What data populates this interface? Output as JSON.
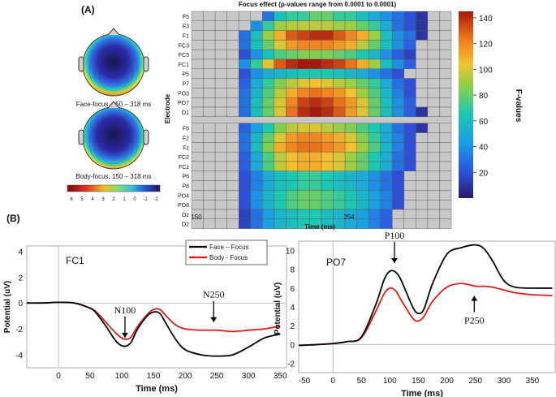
{
  "panel_labels": {
    "a": "(A)",
    "b": "(B)"
  },
  "chart_data": [
    {
      "type": "heatmap",
      "title": "Focus effect (p-values range from 0.0001 to 0.0001)",
      "xlabel": "Time (ms)",
      "ylabel": "Electrode",
      "x_ticks": [
        "150",
        "254"
      ],
      "rows_top": [
        "F5",
        "F3",
        "F1",
        "FC3",
        "FC5",
        "FC1",
        "P5",
        "P7",
        "PO3",
        "PO7",
        "O1"
      ],
      "rows_bottom": [
        "F6",
        "F2",
        "Fz",
        "FC2",
        "FCz",
        "P6",
        "P8",
        "PO4",
        "PO8",
        "Oz",
        "O2"
      ],
      "n_columns": 22,
      "values_top": [
        [
          0,
          0,
          0,
          0,
          0,
          0,
          30,
          60,
          70,
          70,
          80,
          80,
          70,
          70,
          60,
          50,
          40,
          30,
          20,
          10,
          0,
          0
        ],
        [
          0,
          0,
          0,
          0,
          0,
          40,
          70,
          90,
          95,
          95,
          95,
          95,
          90,
          90,
          80,
          70,
          50,
          30,
          20,
          10,
          0,
          0
        ],
        [
          0,
          0,
          0,
          0,
          30,
          60,
          90,
          110,
          130,
          135,
          140,
          140,
          130,
          120,
          110,
          90,
          60,
          40,
          30,
          10,
          0,
          0
        ],
        [
          0,
          0,
          0,
          0,
          30,
          60,
          80,
          100,
          115,
          120,
          120,
          120,
          115,
          110,
          95,
          80,
          60,
          40,
          25,
          0,
          0,
          0
        ],
        [
          0,
          0,
          0,
          0,
          20,
          40,
          60,
          75,
          80,
          85,
          85,
          85,
          80,
          75,
          65,
          55,
          40,
          25,
          15,
          0,
          0,
          0
        ],
        [
          0,
          0,
          0,
          0,
          40,
          70,
          100,
          130,
          140,
          145,
          145,
          140,
          135,
          125,
          110,
          90,
          60,
          40,
          25,
          0,
          0,
          0
        ],
        [
          0,
          0,
          0,
          0,
          20,
          40,
          50,
          55,
          60,
          65,
          65,
          65,
          60,
          55,
          50,
          40,
          30,
          20,
          0,
          0,
          0,
          0
        ],
        [
          0,
          0,
          0,
          0,
          25,
          50,
          70,
          85,
          95,
          100,
          105,
          100,
          95,
          90,
          80,
          70,
          50,
          30,
          20,
          0,
          0,
          0
        ],
        [
          0,
          0,
          0,
          0,
          30,
          55,
          75,
          95,
          110,
          120,
          125,
          120,
          115,
          105,
          90,
          75,
          55,
          35,
          20,
          0,
          0,
          0
        ],
        [
          0,
          0,
          0,
          0,
          30,
          60,
          80,
          100,
          120,
          135,
          140,
          135,
          125,
          115,
          100,
          80,
          60,
          40,
          25,
          0,
          0,
          0
        ],
        [
          0,
          0,
          0,
          0,
          30,
          60,
          80,
          100,
          125,
          140,
          145,
          140,
          130,
          115,
          100,
          80,
          60,
          40,
          25,
          10,
          0,
          0
        ]
      ],
      "values_bottom": [
        [
          0,
          0,
          0,
          0,
          25,
          45,
          65,
          85,
          95,
          100,
          100,
          95,
          90,
          85,
          75,
          65,
          50,
          30,
          20,
          10,
          0,
          0
        ],
        [
          0,
          0,
          0,
          0,
          30,
          55,
          80,
          100,
          115,
          120,
          120,
          115,
          110,
          100,
          85,
          70,
          50,
          35,
          20,
          0,
          0,
          0
        ],
        [
          0,
          0,
          0,
          0,
          30,
          60,
          85,
          110,
          120,
          125,
          125,
          120,
          115,
          105,
          90,
          75,
          55,
          35,
          20,
          0,
          0,
          0
        ],
        [
          0,
          0,
          0,
          0,
          25,
          50,
          75,
          95,
          105,
          110,
          110,
          105,
          100,
          90,
          80,
          65,
          50,
          30,
          20,
          0,
          0,
          0
        ],
        [
          0,
          0,
          0,
          0,
          25,
          50,
          75,
          95,
          105,
          110,
          110,
          105,
          100,
          90,
          80,
          65,
          50,
          30,
          20,
          0,
          0,
          0
        ],
        [
          0,
          0,
          0,
          0,
          20,
          35,
          50,
          60,
          65,
          70,
          70,
          65,
          60,
          55,
          50,
          40,
          30,
          20,
          0,
          0,
          0,
          0
        ],
        [
          0,
          0,
          0,
          0,
          20,
          35,
          50,
          60,
          65,
          70,
          70,
          65,
          60,
          55,
          50,
          40,
          30,
          20,
          0,
          0,
          0,
          0
        ],
        [
          0,
          0,
          0,
          0,
          20,
          40,
          55,
          65,
          75,
          80,
          80,
          75,
          70,
          65,
          55,
          45,
          35,
          20,
          0,
          0,
          0,
          0
        ],
        [
          0,
          0,
          0,
          0,
          20,
          40,
          55,
          65,
          75,
          80,
          80,
          75,
          70,
          65,
          55,
          45,
          35,
          20,
          0,
          0,
          0,
          0
        ],
        [
          0,
          0,
          0,
          0,
          15,
          30,
          45,
          55,
          60,
          65,
          65,
          60,
          55,
          50,
          45,
          35,
          25,
          0,
          0,
          0,
          0,
          0
        ],
        [
          0,
          0,
          0,
          0,
          15,
          30,
          45,
          55,
          60,
          65,
          65,
          60,
          55,
          50,
          45,
          35,
          25,
          0,
          0,
          0,
          0,
          0
        ]
      ],
      "colorbar": {
        "label": "F-values",
        "min": 0,
        "max": 145,
        "ticks": [
          20,
          40,
          60,
          80,
          100,
          120,
          140
        ]
      },
      "topomaps": [
        {
          "label": "Face-focus, 150 – 318 ms"
        },
        {
          "label": "Body-focus, 150 – 318 ms"
        }
      ],
      "topo_colorbar": {
        "ticks": [
          "6",
          "5",
          "4",
          "3",
          "2",
          "1",
          "0",
          "-1",
          "-2"
        ]
      }
    },
    {
      "type": "line",
      "title": "FC1",
      "xlabel": "Time (ms)",
      "ylabel": "Potential (uV)",
      "xlim": [
        -50,
        360
      ],
      "ylim": [
        -5,
        4.4
      ],
      "x_ticks": [
        0,
        50,
        100,
        150,
        200,
        250,
        300,
        350
      ],
      "y_ticks": [
        4,
        2,
        0,
        -2,
        -4
      ],
      "legend": {
        "position": "top-center",
        "entries": [
          "Face – Focus",
          "Body - Focus"
        ]
      },
      "x": [
        -50,
        -25,
        0,
        25,
        50,
        60,
        75,
        90,
        100,
        108,
        115,
        125,
        140,
        150,
        160,
        170,
        185,
        200,
        225,
        250,
        275,
        300,
        325,
        350
      ],
      "series": [
        {
          "name": "Face – Focus",
          "color": "#000000",
          "values": [
            0,
            0,
            0.05,
            0,
            -0.4,
            -0.8,
            -1.8,
            -2.9,
            -3.3,
            -3.3,
            -3.0,
            -2.0,
            -1.0,
            -0.7,
            -0.8,
            -1.6,
            -2.8,
            -3.6,
            -4.0,
            -4.1,
            -4.0,
            -3.4,
            -2.7,
            -2.4
          ]
        },
        {
          "name": "Body - Focus",
          "color": "#e01a1a",
          "values": [
            0,
            0,
            0.05,
            0,
            -0.4,
            -0.7,
            -1.5,
            -2.3,
            -2.7,
            -2.8,
            -2.6,
            -1.8,
            -0.9,
            -0.5,
            -0.5,
            -1.0,
            -1.7,
            -2.0,
            -2.1,
            -2.1,
            -2.2,
            -2.1,
            -2.0,
            -1.8
          ]
        }
      ],
      "annotations": [
        {
          "text": "N100",
          "x": 105,
          "y": -3.3
        },
        {
          "text": "N250",
          "x": 245,
          "y": -2.1
        }
      ]
    },
    {
      "type": "line",
      "title": "PO7",
      "xlabel": "Time (ms)",
      "ylabel": "Potential (uV)",
      "xlim": [
        -60,
        390
      ],
      "ylim": [
        -3,
        11
      ],
      "x_ticks": [
        -50,
        0,
        50,
        100,
        150,
        200,
        250,
        300,
        350
      ],
      "y_ticks": [
        10,
        8,
        6,
        4,
        2,
        0,
        -2
      ],
      "x": [
        -60,
        -25,
        0,
        25,
        50,
        75,
        90,
        100,
        110,
        120,
        140,
        150,
        160,
        175,
        200,
        225,
        250,
        265,
        280,
        300,
        320,
        350,
        385
      ],
      "series": [
        {
          "name": "Face – Focus",
          "color": "#000000",
          "values": [
            -0.1,
            0,
            0.1,
            0.3,
            0.8,
            4.2,
            6.9,
            7.8,
            7.7,
            6.8,
            4.0,
            3.3,
            3.8,
            6.5,
            9.6,
            10.3,
            10.6,
            10.2,
            8.9,
            6.8,
            6.1,
            6.0,
            6.0
          ]
        },
        {
          "name": "Body - Focus",
          "color": "#e01a1a",
          "values": [
            -0.1,
            0,
            0.1,
            0.3,
            0.7,
            3.5,
            5.4,
            6.0,
            5.7,
            4.7,
            2.8,
            2.5,
            3.0,
            4.6,
            6.1,
            6.5,
            6.2,
            6.2,
            6.1,
            5.8,
            5.5,
            5.3,
            5.2
          ]
        }
      ],
      "annotations": [
        {
          "text": "P100",
          "x": 108,
          "y": 7.8
        },
        {
          "text": "P250",
          "x": 248,
          "y": 6.2
        }
      ]
    }
  ]
}
